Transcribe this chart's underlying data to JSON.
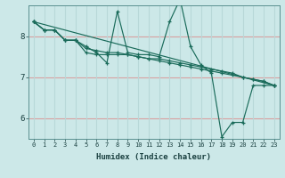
{
  "xlabel": "Humidex (Indice chaleur)",
  "ylabel": "",
  "bg_color": "#cce8e8",
  "plot_bg_color": "#cce8e8",
  "grid_color_h": "#d8a0a0",
  "grid_color_v": "#b8d8d8",
  "line_color": "#1a6b5a",
  "xlim": [
    -0.5,
    23.5
  ],
  "ylim": [
    5.5,
    8.75
  ],
  "yticks": [
    6,
    7,
    8
  ],
  "xticks": [
    0,
    1,
    2,
    3,
    4,
    5,
    6,
    7,
    8,
    9,
    10,
    11,
    12,
    13,
    14,
    15,
    16,
    17,
    18,
    19,
    20,
    21,
    22,
    23
  ],
  "series": [
    {
      "x": [
        0,
        1,
        2,
        3,
        4,
        5,
        6,
        7,
        8,
        9,
        10,
        11,
        12,
        13,
        14,
        15,
        16,
        17,
        18,
        19,
        20,
        21,
        22,
        23
      ],
      "y": [
        8.35,
        8.15,
        8.15,
        7.9,
        7.9,
        7.75,
        7.6,
        7.35,
        8.6,
        7.6,
        7.55,
        7.55,
        7.5,
        8.35,
        8.9,
        7.75,
        7.3,
        7.1,
        5.55,
        5.9,
        5.9,
        6.8,
        6.8,
        6.8
      ]
    },
    {
      "x": [
        0,
        23
      ],
      "y": [
        8.35,
        6.8
      ]
    },
    {
      "x": [
        0,
        1,
        2,
        3,
        4,
        5,
        6,
        7,
        8,
        9,
        10,
        11,
        12,
        13,
        14,
        15,
        16,
        17,
        18,
        19,
        20,
        21,
        22,
        23
      ],
      "y": [
        8.35,
        8.15,
        8.15,
        7.9,
        7.9,
        7.6,
        7.55,
        7.55,
        7.55,
        7.55,
        7.5,
        7.45,
        7.45,
        7.4,
        7.35,
        7.3,
        7.25,
        7.2,
        7.15,
        7.1,
        7.0,
        6.95,
        6.9,
        6.8
      ]
    },
    {
      "x": [
        0,
        1,
        2,
        3,
        4,
        5,
        6,
        7,
        8,
        9,
        10,
        11,
        12,
        13,
        14,
        15,
        16,
        17,
        18,
        19,
        20,
        21,
        22,
        23
      ],
      "y": [
        8.35,
        8.15,
        8.15,
        7.9,
        7.9,
        7.7,
        7.65,
        7.6,
        7.6,
        7.55,
        7.5,
        7.45,
        7.4,
        7.35,
        7.3,
        7.25,
        7.2,
        7.15,
        7.1,
        7.05,
        7.0,
        6.95,
        6.9,
        6.8
      ]
    }
  ]
}
